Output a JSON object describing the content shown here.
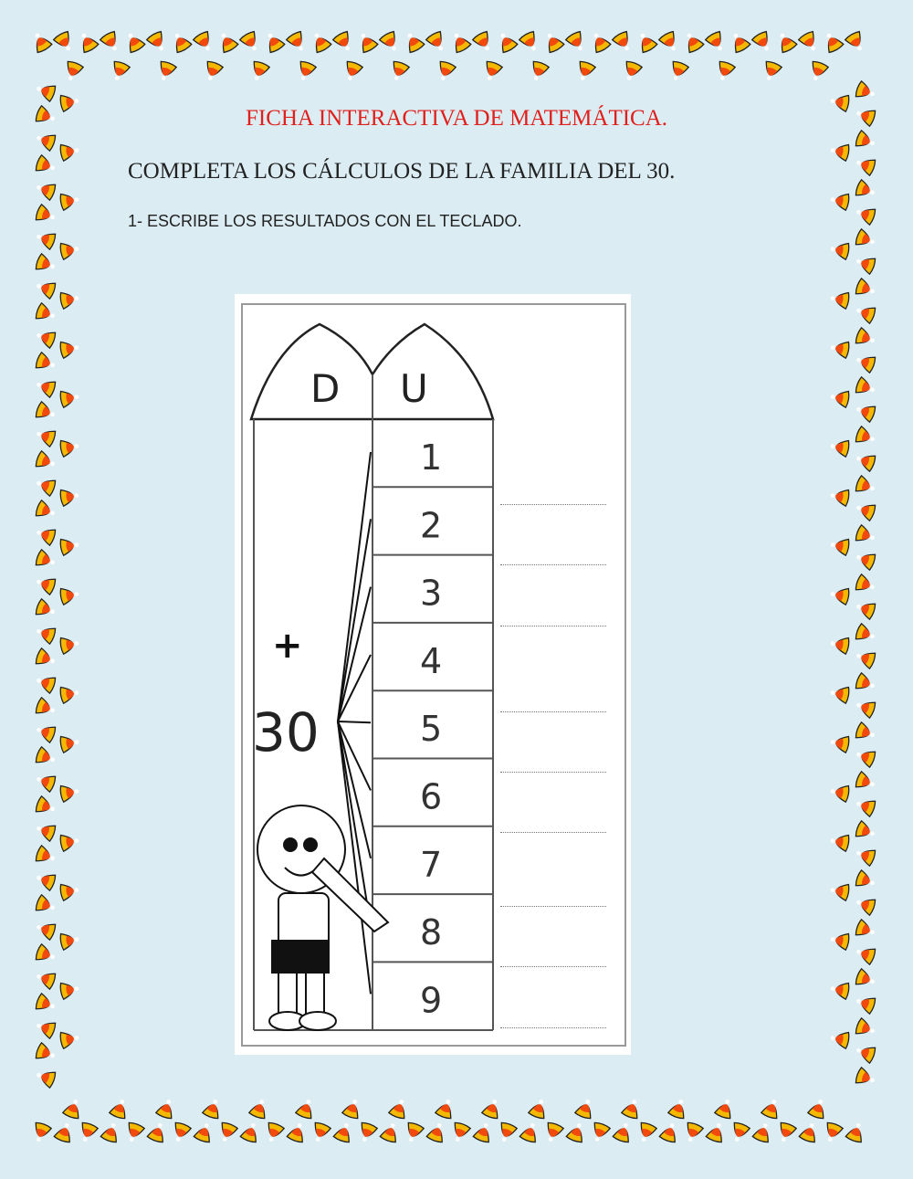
{
  "title": "FICHA INTERACTIVA DE MATEMÁTICA.",
  "subtitle": "COMPLETA LOS CÁLCULOS DE LA FAMILIA DEL 30.",
  "instruction": "1- ESCRIBE LOS RESULTADOS CON EL TECLADO.",
  "worksheet": {
    "col_tens": "D",
    "col_units": "U",
    "operator": "+",
    "base": "30",
    "units": [
      "1",
      "2",
      "3",
      "4",
      "5",
      "6",
      "7",
      "8",
      "9"
    ],
    "answers": [
      "",
      "",
      "",
      "",
      "",
      "",
      "",
      "",
      ""
    ]
  },
  "colors": {
    "background": "#dbedf3",
    "title": "#e0201c",
    "candy_orange": "#f24a0c",
    "candy_yellow": "#f5b800"
  }
}
